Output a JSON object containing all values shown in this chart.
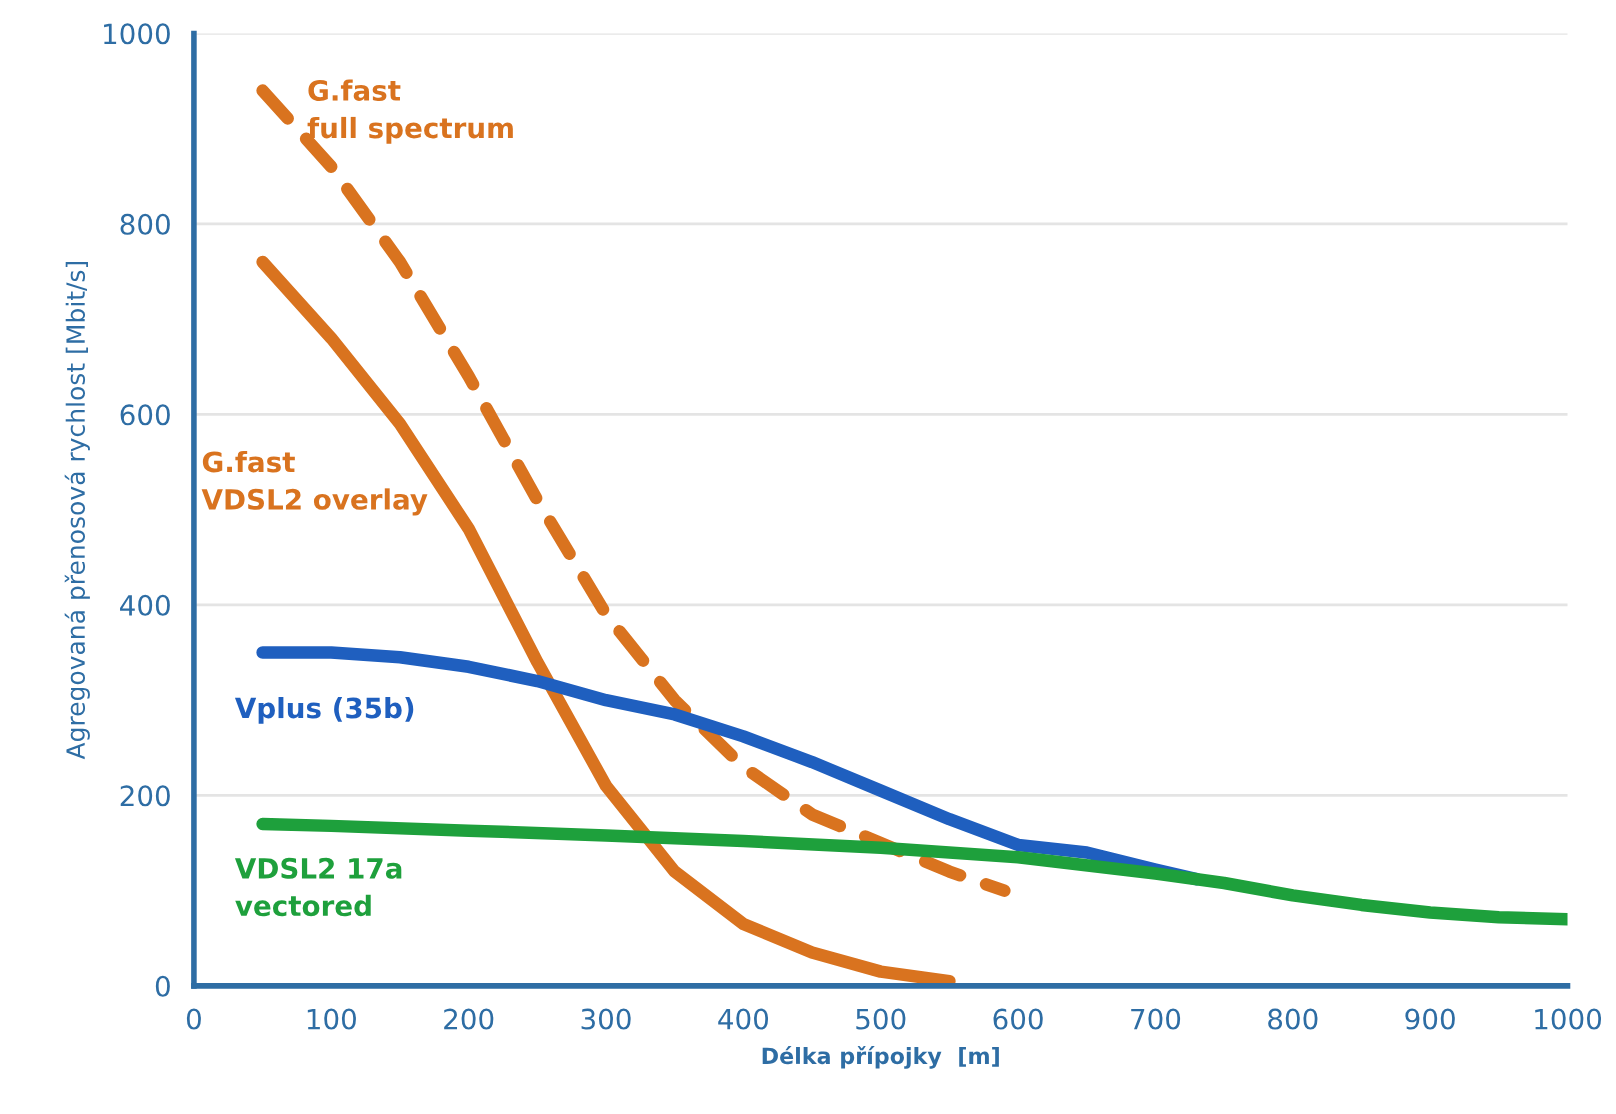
{
  "chart_data": {
    "type": "line",
    "xlabel": "Délka přípojky  [m]",
    "ylabel": "Agregovaná přenosová rychlost [Mbit/s]",
    "xlim": [
      0,
      1000
    ],
    "xticks": [
      0,
      100,
      200,
      300,
      400,
      500,
      600,
      700,
      800,
      900,
      1000
    ],
    "ylim": [
      0,
      1000
    ],
    "yticks": [
      0,
      200,
      400,
      600,
      800,
      1000
    ],
    "grid": "y",
    "legend": false,
    "marker": "none",
    "series": [
      {
        "name": "G.fast\nfull spectrum",
        "color": "#d9731f",
        "line_style": "dashed",
        "x": [
          50,
          100,
          150,
          200,
          250,
          300,
          350,
          400,
          450,
          500,
          550,
          590
        ],
        "values": [
          940,
          860,
          760,
          640,
          510,
          390,
          300,
          230,
          180,
          150,
          120,
          100
        ]
      },
      {
        "name": "G.fast\nVDSL2 overlay",
        "color": "#d9731f",
        "line_style": "solid",
        "x": [
          50,
          100,
          150,
          200,
          250,
          300,
          350,
          400,
          450,
          500,
          550
        ],
        "values": [
          760,
          680,
          590,
          480,
          340,
          210,
          120,
          65,
          35,
          15,
          5
        ]
      },
      {
        "name": "Vplus (35b)",
        "color": "#1f5fbf",
        "line_style": "solid",
        "x": [
          50,
          100,
          150,
          200,
          250,
          300,
          350,
          400,
          450,
          500,
          550,
          600,
          650,
          700,
          730
        ],
        "values": [
          350,
          350,
          345,
          335,
          320,
          300,
          285,
          262,
          235,
          205,
          175,
          148,
          140,
          122,
          112
        ]
      },
      {
        "name": "VDSL2 17a\nvectored",
        "color": "#1ea03c",
        "line_style": "solid",
        "x": [
          50,
          100,
          200,
          300,
          400,
          500,
          600,
          700,
          750,
          800,
          850,
          900,
          950,
          1000
        ],
        "values": [
          170,
          168,
          163,
          158,
          152,
          145,
          135,
          118,
          108,
          95,
          85,
          77,
          72,
          70
        ]
      }
    ]
  }
}
